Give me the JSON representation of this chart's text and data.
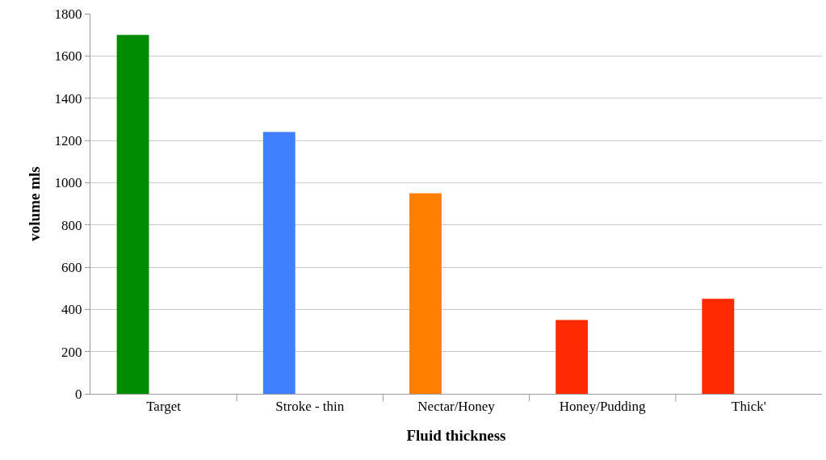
{
  "chart_data": {
    "type": "bar",
    "xlabel": "Fluid thickness",
    "ylabel": "volume mls",
    "categories": [
      "Target",
      "Stroke - thin",
      "Nectar/Honey",
      "Honey/Pudding",
      "Thick'"
    ],
    "values": [
      1700,
      1240,
      950,
      350,
      450
    ],
    "colors": [
      "#008c00",
      "#4080ff",
      "#ff8000",
      "#ff2a00",
      "#ff2a00"
    ],
    "ylim": [
      0,
      1800
    ],
    "yticks": [
      0,
      200,
      400,
      600,
      800,
      1000,
      1200,
      1400,
      1600,
      1800
    ],
    "grid": "y"
  }
}
